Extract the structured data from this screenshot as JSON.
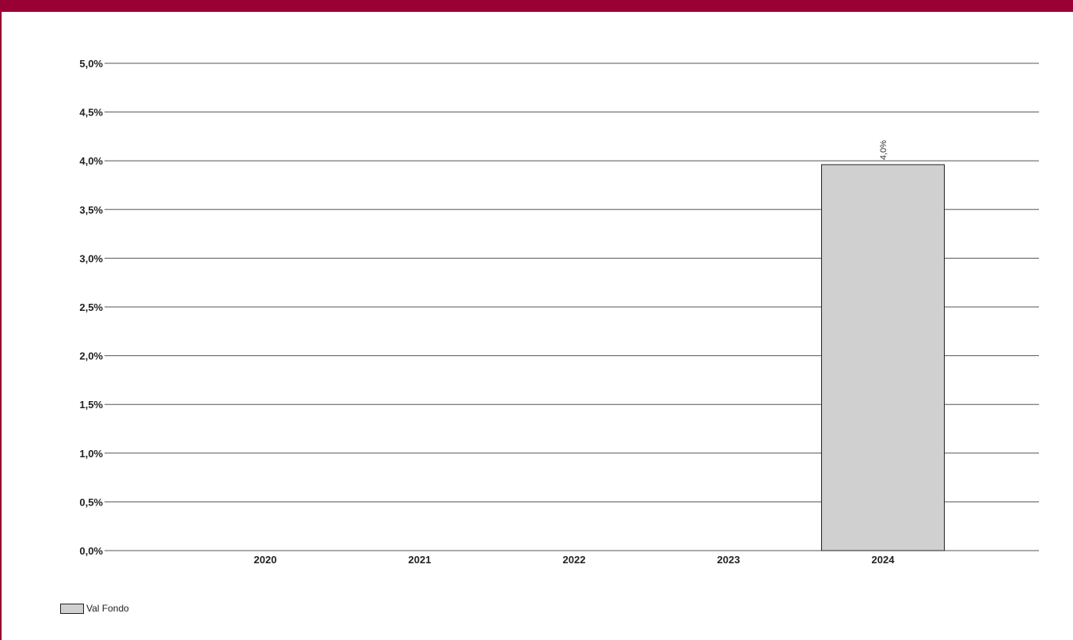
{
  "chart_data": {
    "type": "bar",
    "categories": [
      "2020",
      "2021",
      "2022",
      "2023",
      "2024"
    ],
    "series": [
      {
        "name": "Val Fondo",
        "values": [
          null,
          null,
          null,
          null,
          3.96
        ],
        "data_labels": [
          "",
          "",
          "",
          "",
          "4,0%"
        ],
        "color": "#d0d0d0"
      }
    ],
    "ylim": [
      0,
      5
    ],
    "y_ticks": [
      {
        "value": 0,
        "label": "0,0%"
      },
      {
        "value": 0.5,
        "label": "0,5%"
      },
      {
        "value": 1,
        "label": "1,0%"
      },
      {
        "value": 1.5,
        "label": "1,5%"
      },
      {
        "value": 2,
        "label": "2,0%"
      },
      {
        "value": 2.5,
        "label": "2,5%"
      },
      {
        "value": 3,
        "label": "3,0%"
      },
      {
        "value": 3.5,
        "label": "3,5%"
      },
      {
        "value": 4,
        "label": "4,0%"
      },
      {
        "value": 4.5,
        "label": "4,5%"
      },
      {
        "value": 5,
        "label": "5,0%"
      }
    ],
    "grid": true,
    "legend_position": "bottom-left",
    "colors": {
      "header": "#990033",
      "bar": "#d0d0d0",
      "gridline": "#555555"
    }
  }
}
